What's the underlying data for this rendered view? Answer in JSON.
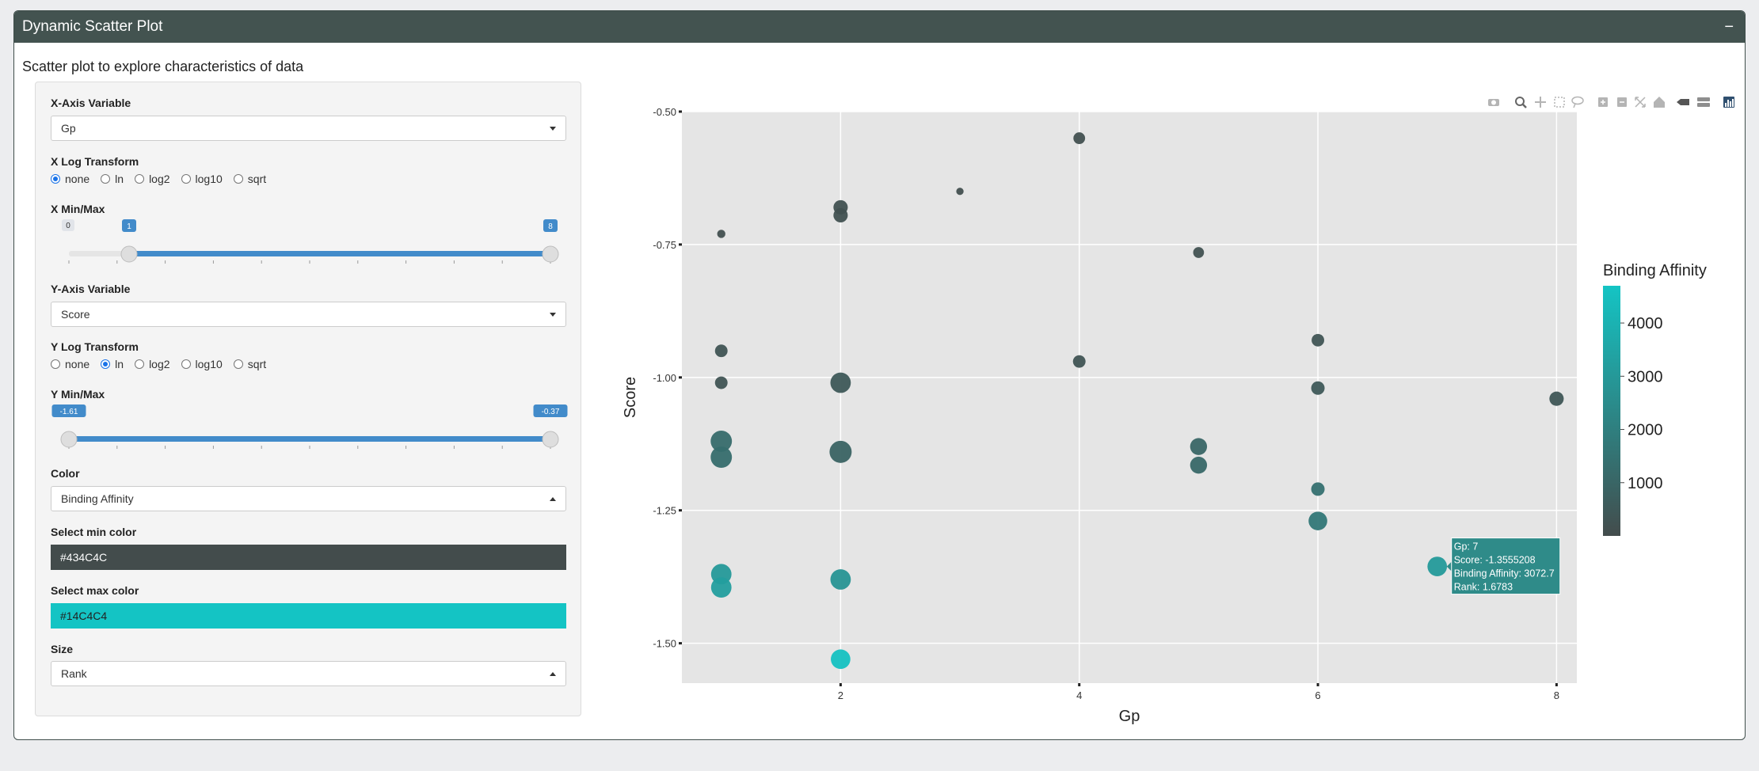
{
  "panel": {
    "title": "Dynamic Scatter Plot",
    "collapse_icon": "−"
  },
  "subtitle": "Scatter plot to explore characteristics of data",
  "controls": {
    "x_var": {
      "label": "X-Axis Variable",
      "value": "Gp"
    },
    "x_log": {
      "label": "X Log Transform",
      "options": [
        "none",
        "ln",
        "log2",
        "log10",
        "sqrt"
      ],
      "selected": "none"
    },
    "x_minmax": {
      "label": "X Min/Max",
      "min_label": "0",
      "from_label": "1",
      "to_label": "8",
      "min": 0,
      "max": 8,
      "from": 1,
      "to": 8,
      "ticks": [
        "0",
        "0.8",
        "1.6",
        "2.4",
        "3.2",
        "4",
        "4.8",
        "5.6",
        "6.4",
        "7.2",
        "8"
      ]
    },
    "y_var": {
      "label": "Y-Axis Variable",
      "value": "Score"
    },
    "y_log": {
      "label": "Y Log Transform",
      "options": [
        "none",
        "ln",
        "log2",
        "log10",
        "sqrt"
      ],
      "selected": "ln"
    },
    "y_minmax": {
      "label": "Y Min/Max",
      "from_label": "-1.61",
      "to_label": "-0.37",
      "min": -1.61,
      "max": -0.37,
      "from": -1.61,
      "to": -0.37,
      "ticks": [
        "-1.61",
        "-1.48",
        "-1.35",
        "-1.22",
        "-1.09",
        "-0.96",
        "-0.83",
        "-0.7",
        "-0.57",
        "-0.44",
        "-0.37"
      ]
    },
    "color": {
      "label": "Color",
      "value": "Binding Affinity"
    },
    "min_color": {
      "label": "Select min color",
      "value": "#434C4C"
    },
    "max_color": {
      "label": "Select max color",
      "value": "#14C4C4"
    },
    "size": {
      "label": "Size",
      "value": "Rank"
    }
  },
  "chart_data": {
    "type": "scatter",
    "xlabel": "Gp",
    "ylabel": "Score",
    "xlim": [
      0.67,
      8.17
    ],
    "ylim": [
      -1.575,
      -0.5
    ],
    "xticks": [
      2,
      4,
      6,
      8
    ],
    "yticks": [
      -0.5,
      -0.75,
      -1.0,
      -1.25,
      -1.5
    ],
    "ytick_labels": [
      "-0.50",
      "-0.75",
      "-1.00",
      "-1.25",
      "-1.50"
    ],
    "grid": true,
    "colorbar": {
      "title": "Binding Affinity",
      "min": 0,
      "max": 4700,
      "ticks": [
        1000,
        2000,
        3000,
        4000
      ],
      "tick_labels": [
        "1000",
        "2000",
        "3000",
        "4000"
      ],
      "min_color": "#434C4C",
      "max_color": "#14C4C4"
    },
    "points": [
      {
        "x": 1,
        "y": -0.73,
        "color": 150,
        "size": 0.4
      },
      {
        "x": 1,
        "y": -0.95,
        "color": 300,
        "size": 0.9
      },
      {
        "x": 1,
        "y": -1.01,
        "color": 300,
        "size": 0.9
      },
      {
        "x": 1,
        "y": -1.12,
        "color": 1200,
        "size": 1.9
      },
      {
        "x": 1,
        "y": -1.15,
        "color": 1300,
        "size": 1.9
      },
      {
        "x": 1,
        "y": -1.37,
        "color": 3000,
        "size": 1.8
      },
      {
        "x": 1,
        "y": -1.395,
        "color": 3200,
        "size": 1.8
      },
      {
        "x": 2,
        "y": -0.68,
        "color": 200,
        "size": 1.1
      },
      {
        "x": 2,
        "y": -0.695,
        "color": 200,
        "size": 1.1
      },
      {
        "x": 2,
        "y": -1.01,
        "color": 500,
        "size": 1.8
      },
      {
        "x": 2,
        "y": -1.14,
        "color": 900,
        "size": 2.0
      },
      {
        "x": 2,
        "y": -1.38,
        "color": 2800,
        "size": 1.8
      },
      {
        "x": 2,
        "y": -1.53,
        "color": 4600,
        "size": 1.7
      },
      {
        "x": 3,
        "y": -0.65,
        "color": 100,
        "size": 0.3
      },
      {
        "x": 4,
        "y": -0.55,
        "color": 150,
        "size": 0.8
      },
      {
        "x": 4,
        "y": -0.97,
        "color": 300,
        "size": 0.9
      },
      {
        "x": 5,
        "y": -0.765,
        "color": 200,
        "size": 0.7
      },
      {
        "x": 5,
        "y": -1.13,
        "color": 1000,
        "size": 1.4
      },
      {
        "x": 5,
        "y": -1.165,
        "color": 1100,
        "size": 1.4
      },
      {
        "x": 6,
        "y": -0.93,
        "color": 300,
        "size": 0.9
      },
      {
        "x": 6,
        "y": -1.02,
        "color": 500,
        "size": 1.0
      },
      {
        "x": 6,
        "y": -1.21,
        "color": 1400,
        "size": 1.0
      },
      {
        "x": 6,
        "y": -1.27,
        "color": 1700,
        "size": 1.6
      },
      {
        "x": 7,
        "y": -1.3555208,
        "color": 3072.7,
        "size": 1.7
      },
      {
        "x": 8,
        "y": -1.04,
        "color": 400,
        "size": 1.1
      }
    ],
    "tooltip": {
      "lines": [
        "Gp: 7",
        "Score: -1.3555208",
        "Binding Affinity: 3072.7",
        "Rank: 1.6783"
      ],
      "point_x": 7,
      "point_y": -1.3555208
    }
  },
  "modebar_icons": [
    "camera-icon",
    "zoom-icon",
    "pan-icon",
    "box-select-icon",
    "lasso-select-icon",
    "zoom-in-icon",
    "zoom-out-icon",
    "autoscale-icon",
    "reset-axes-icon",
    "spike-lines-icon",
    "compare-hover-icon",
    "plotly-logo-icon"
  ]
}
